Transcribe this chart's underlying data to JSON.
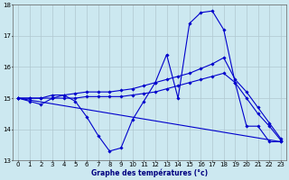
{
  "title": "Graphe des températures (°c)",
  "background_color": "#cce8f0",
  "grid_color": "#b0c8d0",
  "line_color": "#0000cc",
  "xlim": [
    -0.5,
    23.5
  ],
  "ylim": [
    13,
    18
  ],
  "yticks": [
    13,
    14,
    15,
    16,
    17,
    18
  ],
  "xticks": [
    0,
    1,
    2,
    3,
    4,
    5,
    6,
    7,
    8,
    9,
    10,
    11,
    12,
    13,
    14,
    15,
    16,
    17,
    18,
    19,
    20,
    21,
    22,
    23
  ],
  "series": [
    {
      "x": [
        0,
        1,
        2,
        3,
        4,
        5,
        6,
        7,
        8,
        9,
        10,
        11,
        12,
        13,
        14,
        15,
        16,
        17,
        18,
        19,
        20,
        21,
        22,
        23
      ],
      "y": [
        15.0,
        14.9,
        14.8,
        15.0,
        15.1,
        14.9,
        14.4,
        13.8,
        13.3,
        13.4,
        14.3,
        14.9,
        15.5,
        16.4,
        15.0,
        17.4,
        17.75,
        17.8,
        17.2,
        15.5,
        14.1,
        14.1,
        13.6,
        13.6
      ]
    },
    {
      "x": [
        0,
        1,
        2,
        3,
        4,
        5,
        6,
        7,
        8,
        9,
        10,
        11,
        12,
        13,
        14,
        15,
        16,
        17,
        18,
        19,
        20,
        21,
        22,
        23
      ],
      "y": [
        15.0,
        15.0,
        15.0,
        15.1,
        15.1,
        15.15,
        15.2,
        15.2,
        15.2,
        15.25,
        15.3,
        15.4,
        15.5,
        15.6,
        15.7,
        15.8,
        15.95,
        16.1,
        16.3,
        15.6,
        15.2,
        14.7,
        14.2,
        13.7
      ]
    },
    {
      "x": [
        0,
        23
      ],
      "y": [
        15.0,
        13.6
      ]
    },
    {
      "x": [
        0,
        1,
        2,
        3,
        4,
        5,
        6,
        7,
        8,
        9,
        10,
        11,
        12,
        13,
        14,
        15,
        16,
        17,
        18,
        19,
        20,
        21,
        22,
        23
      ],
      "y": [
        15.0,
        15.0,
        15.0,
        15.0,
        15.0,
        15.0,
        15.05,
        15.05,
        15.05,
        15.05,
        15.1,
        15.15,
        15.2,
        15.3,
        15.4,
        15.5,
        15.6,
        15.7,
        15.8,
        15.5,
        15.0,
        14.5,
        14.1,
        13.65
      ]
    }
  ]
}
